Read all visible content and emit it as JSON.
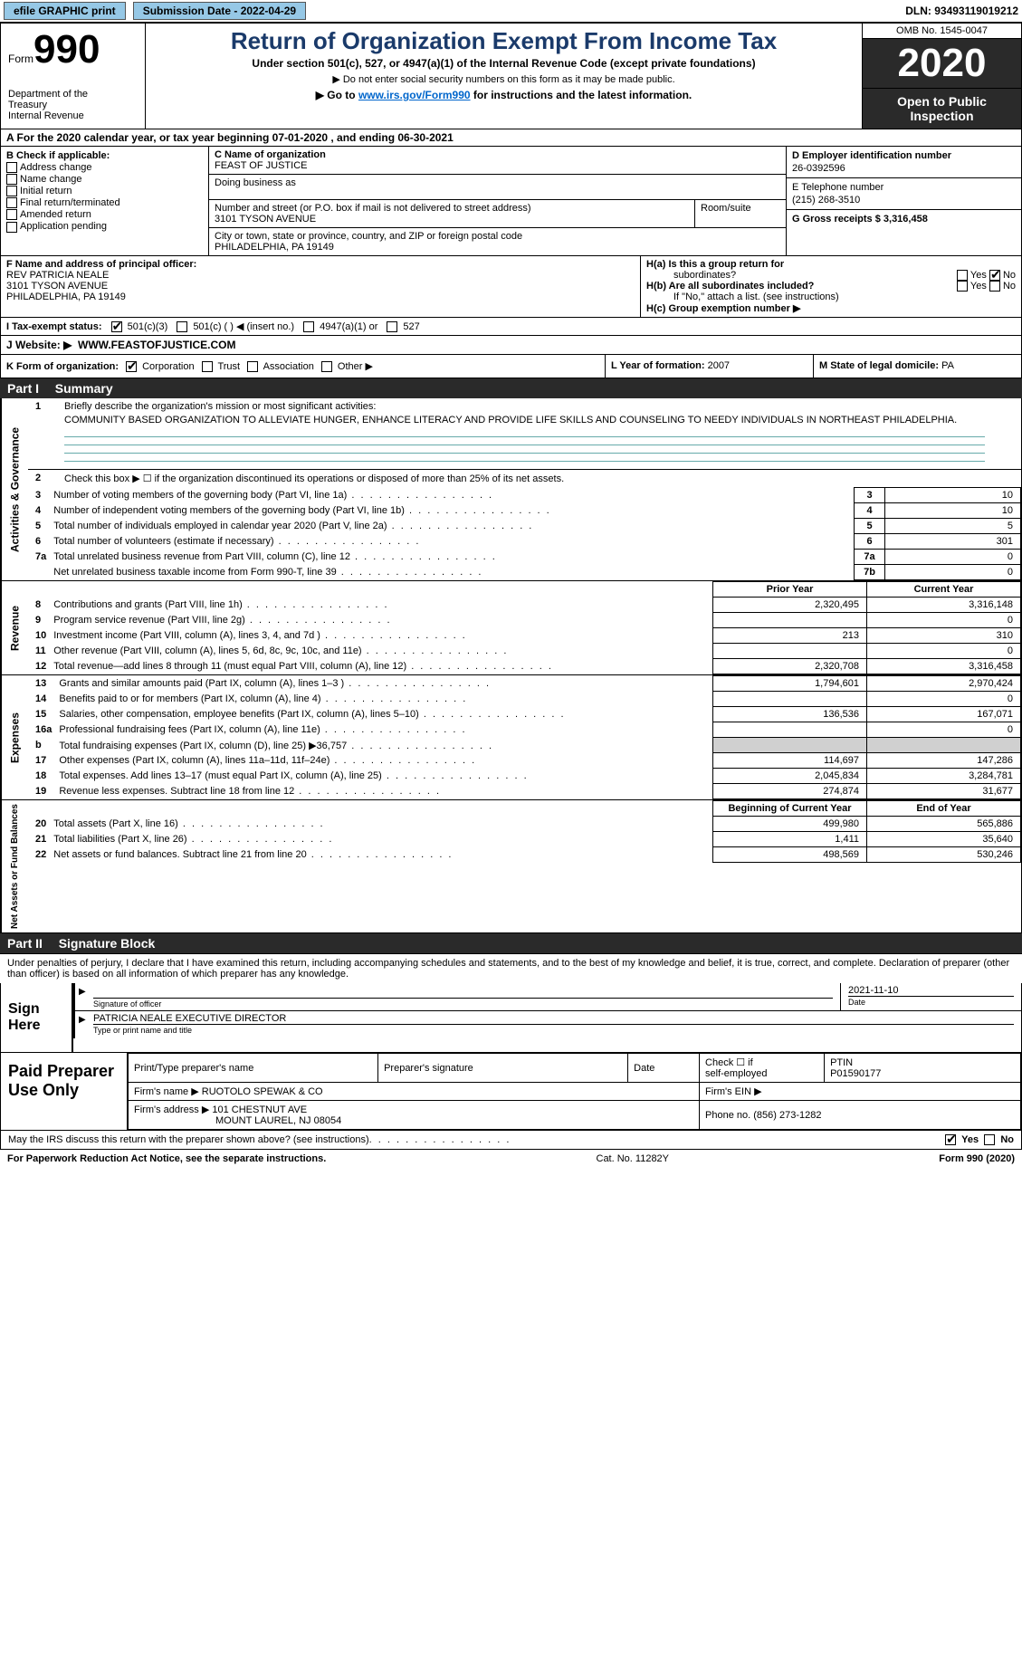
{
  "topbar": {
    "efile_label": "efile GRAPHIC print",
    "submission_label": "Submission Date - 2022-04-29",
    "dln_label": "DLN: 93493119019212"
  },
  "header": {
    "form_label": "Form",
    "form_number": "990",
    "dept1": "Department of the",
    "dept2": "Treasury",
    "dept3": "Internal Revenue",
    "title": "Return of Organization Exempt From Income Tax",
    "subtitle": "Under section 501(c), 527, or 4947(a)(1) of the Internal Revenue Code (except private foundations)",
    "note1": "▶ Do not enter social security numbers on this form as it may be made public.",
    "note2_pre": "▶ Go to ",
    "note2_link": "www.irs.gov/Form990",
    "note2_post": " for instructions and the latest information.",
    "omb": "OMB No. 1545-0047",
    "year": "2020",
    "open1": "Open to Public",
    "open2": "Inspection"
  },
  "period": "A For the 2020 calendar year, or tax year beginning 07-01-2020   , and ending 06-30-2021",
  "box_b": {
    "heading": "B Check if applicable:",
    "items": [
      "Address change",
      "Name change",
      "Initial return",
      "Final return/terminated",
      "Amended return",
      "Application pending"
    ],
    "app_pending_label": "Pending"
  },
  "box_c": {
    "name_label": "C Name of organization",
    "name": "FEAST OF JUSTICE",
    "dba_label": "Doing business as",
    "addr_label": "Number and street (or P.O. box if mail is not delivered to street address)",
    "addr": "3101 TYSON AVENUE",
    "room_label": "Room/suite",
    "city_label": "City or town, state or province, country, and ZIP or foreign postal code",
    "city": "PHILADELPHIA, PA  19149"
  },
  "box_d": {
    "label": "D Employer identification number",
    "value": "26-0392596"
  },
  "box_e": {
    "label": "E Telephone number",
    "value": "(215) 268-3510"
  },
  "box_g": {
    "label": "G Gross receipts $",
    "value": "3,316,458"
  },
  "box_f": {
    "label": "F  Name and address of principal officer:",
    "line1": "REV PATRICIA NEALE",
    "line2": "3101 TYSON AVENUE",
    "line3": "PHILADELPHIA, PA  19149"
  },
  "box_h": {
    "ha_label": "H(a)  Is this a group return for",
    "ha_label2": "subordinates?",
    "hb_label": "H(b)  Are all subordinates included?",
    "hb_note": "If \"No,\" attach a list. (see instructions)",
    "hc_label": "H(c)  Group exemption number ▶",
    "yes": "Yes",
    "no": "No"
  },
  "tax_status": {
    "label": "I   Tax-exempt status:",
    "opt1": "501(c)(3)",
    "opt2": "501(c) (  )",
    "opt2_note": "◀ (insert no.)",
    "opt3": "4947(a)(1) or",
    "opt4": "527"
  },
  "website": {
    "label": "J   Website: ▶",
    "value": "WWW.FEASTOFJUSTICE.COM"
  },
  "box_k": {
    "label": "K Form of organization:",
    "opts": [
      "Corporation",
      "Trust",
      "Association",
      "Other ▶"
    ]
  },
  "box_l": {
    "label": "L Year of formation:",
    "value": "2007"
  },
  "box_m": {
    "label": "M State of legal domicile:",
    "value": "PA"
  },
  "part1": {
    "num": "Part I",
    "title": "Summary"
  },
  "mission": {
    "q1_num": "1",
    "q1": "Briefly describe the organization's mission or most significant activities:",
    "q1_text": "COMMUNITY BASED ORGANIZATION TO ALLEVIATE HUNGER, ENHANCE LITERACY AND PROVIDE LIFE SKILLS AND COUNSELING TO NEEDY INDIVIDUALS IN NORTHEAST PHILADELPHIA.",
    "q2_num": "2",
    "q2": "Check this box ▶ ☐  if the organization discontinued its operations or disposed of more than 25% of its net assets."
  },
  "gov_lines": [
    {
      "n": "3",
      "desc": "Number of voting members of the governing body (Part VI, line 1a)",
      "box": "3",
      "val": "10"
    },
    {
      "n": "4",
      "desc": "Number of independent voting members of the governing body (Part VI, line 1b)",
      "box": "4",
      "val": "10"
    },
    {
      "n": "5",
      "desc": "Total number of individuals employed in calendar year 2020 (Part V, line 2a)",
      "box": "5",
      "val": "5"
    },
    {
      "n": "6",
      "desc": "Total number of volunteers (estimate if necessary)",
      "box": "6",
      "val": "301"
    },
    {
      "n": "7a",
      "desc": "Total unrelated business revenue from Part VIII, column (C), line 12",
      "box": "7a",
      "val": "0"
    },
    {
      "n": "",
      "desc": "Net unrelated business taxable income from Form 990-T, line 39",
      "box": "7b",
      "val": "0"
    }
  ],
  "col_headers": {
    "prior": "Prior Year",
    "current": "Current Year",
    "boy": "Beginning of Current Year",
    "eoy": "End of Year"
  },
  "revenue_lines": [
    {
      "n": "8",
      "desc": "Contributions and grants (Part VIII, line 1h)",
      "c1": "2,320,495",
      "c2": "3,316,148"
    },
    {
      "n": "9",
      "desc": "Program service revenue (Part VIII, line 2g)",
      "c1": "",
      "c2": "0"
    },
    {
      "n": "10",
      "desc": "Investment income (Part VIII, column (A), lines 3, 4, and 7d )",
      "c1": "213",
      "c2": "310"
    },
    {
      "n": "11",
      "desc": "Other revenue (Part VIII, column (A), lines 5, 6d, 8c, 9c, 10c, and 11e)",
      "c1": "",
      "c2": "0"
    },
    {
      "n": "12",
      "desc": "Total revenue—add lines 8 through 11 (must equal Part VIII, column (A), line 12)",
      "c1": "2,320,708",
      "c2": "3,316,458"
    }
  ],
  "expense_lines": [
    {
      "n": "13",
      "desc": "Grants and similar amounts paid (Part IX, column (A), lines 1–3 )",
      "c1": "1,794,601",
      "c2": "2,970,424"
    },
    {
      "n": "14",
      "desc": "Benefits paid to or for members (Part IX, column (A), line 4)",
      "c1": "",
      "c2": "0"
    },
    {
      "n": "15",
      "desc": "Salaries, other compensation, employee benefits (Part IX, column (A), lines 5–10)",
      "c1": "136,536",
      "c2": "167,071"
    },
    {
      "n": "16a",
      "desc": "Professional fundraising fees (Part IX, column (A), line 11e)",
      "c1": "",
      "c2": "0"
    },
    {
      "n": "b",
      "desc": "Total fundraising expenses (Part IX, column (D), line 25) ▶36,757",
      "c1": "SHADE",
      "c2": "SHADE"
    },
    {
      "n": "17",
      "desc": "Other expenses (Part IX, column (A), lines 11a–11d, 11f–24e)",
      "c1": "114,697",
      "c2": "147,286"
    },
    {
      "n": "18",
      "desc": "Total expenses. Add lines 13–17 (must equal Part IX, column (A), line 25)",
      "c1": "2,045,834",
      "c2": "3,284,781"
    },
    {
      "n": "19",
      "desc": "Revenue less expenses. Subtract line 18 from line 12",
      "c1": "274,874",
      "c2": "31,677"
    }
  ],
  "netassets_lines": [
    {
      "n": "20",
      "desc": "Total assets (Part X, line 16)",
      "c1": "499,980",
      "c2": "565,886"
    },
    {
      "n": "21",
      "desc": "Total liabilities (Part X, line 26)",
      "c1": "1,411",
      "c2": "35,640"
    },
    {
      "n": "22",
      "desc": "Net assets or fund balances. Subtract line 21 from line 20",
      "c1": "498,569",
      "c2": "530,246"
    }
  ],
  "side_labels": {
    "gov": "Activities & Governance",
    "rev": "Revenue",
    "exp": "Expenses",
    "net": "Net Assets or Fund Balances"
  },
  "part2": {
    "num": "Part II",
    "title": "Signature Block"
  },
  "sig_intro": "Under penalties of perjury, I declare that I have examined this return, including accompanying schedules and statements, and to the best of my knowledge and belief, it is true, correct, and complete. Declaration of preparer (other than officer) is based on all information of which preparer has any knowledge.",
  "sign_here": "Sign Here",
  "sig": {
    "officer_label": "Signature of officer",
    "date_label": "Date",
    "date_value": "2021-11-10",
    "name": "PATRICIA NEALE  EXECUTIVE DIRECTOR",
    "name_label": "Type or print name and title"
  },
  "prep_label": "Paid Preparer Use Only",
  "prep": {
    "col1": "Print/Type preparer's name",
    "col2": "Preparer's signature",
    "col3": "Date",
    "col4_a": "Check ☐ if",
    "col4_b": "self-employed",
    "col5_a": "PTIN",
    "col5_b": "P01590177",
    "firm_name_label": "Firm's name    ▶",
    "firm_name": "RUOTOLO SPEWAK & CO",
    "firm_ein_label": "Firm's EIN ▶",
    "firm_addr_label": "Firm's address ▶",
    "firm_addr1": "101 CHESTNUT AVE",
    "firm_addr2": "MOUNT LAUREL, NJ  08054",
    "phone_label": "Phone no.",
    "phone": "(856) 273-1282"
  },
  "discuss": {
    "text": "May the IRS discuss this return with the preparer shown above? (see instructions)",
    "yes": "Yes",
    "no": "No"
  },
  "footer": {
    "left": "For Paperwork Reduction Act Notice, see the separate instructions.",
    "mid": "Cat. No. 11282Y",
    "right": "Form 990 (2020)"
  },
  "colors": {
    "button_bg": "#96c8e6",
    "dark_bg": "#2a2a2a",
    "title_color": "#1a3a6a",
    "link_color": "#0066cc",
    "rule_color": "#6aa0c0",
    "shade": "#d0d0d0"
  }
}
